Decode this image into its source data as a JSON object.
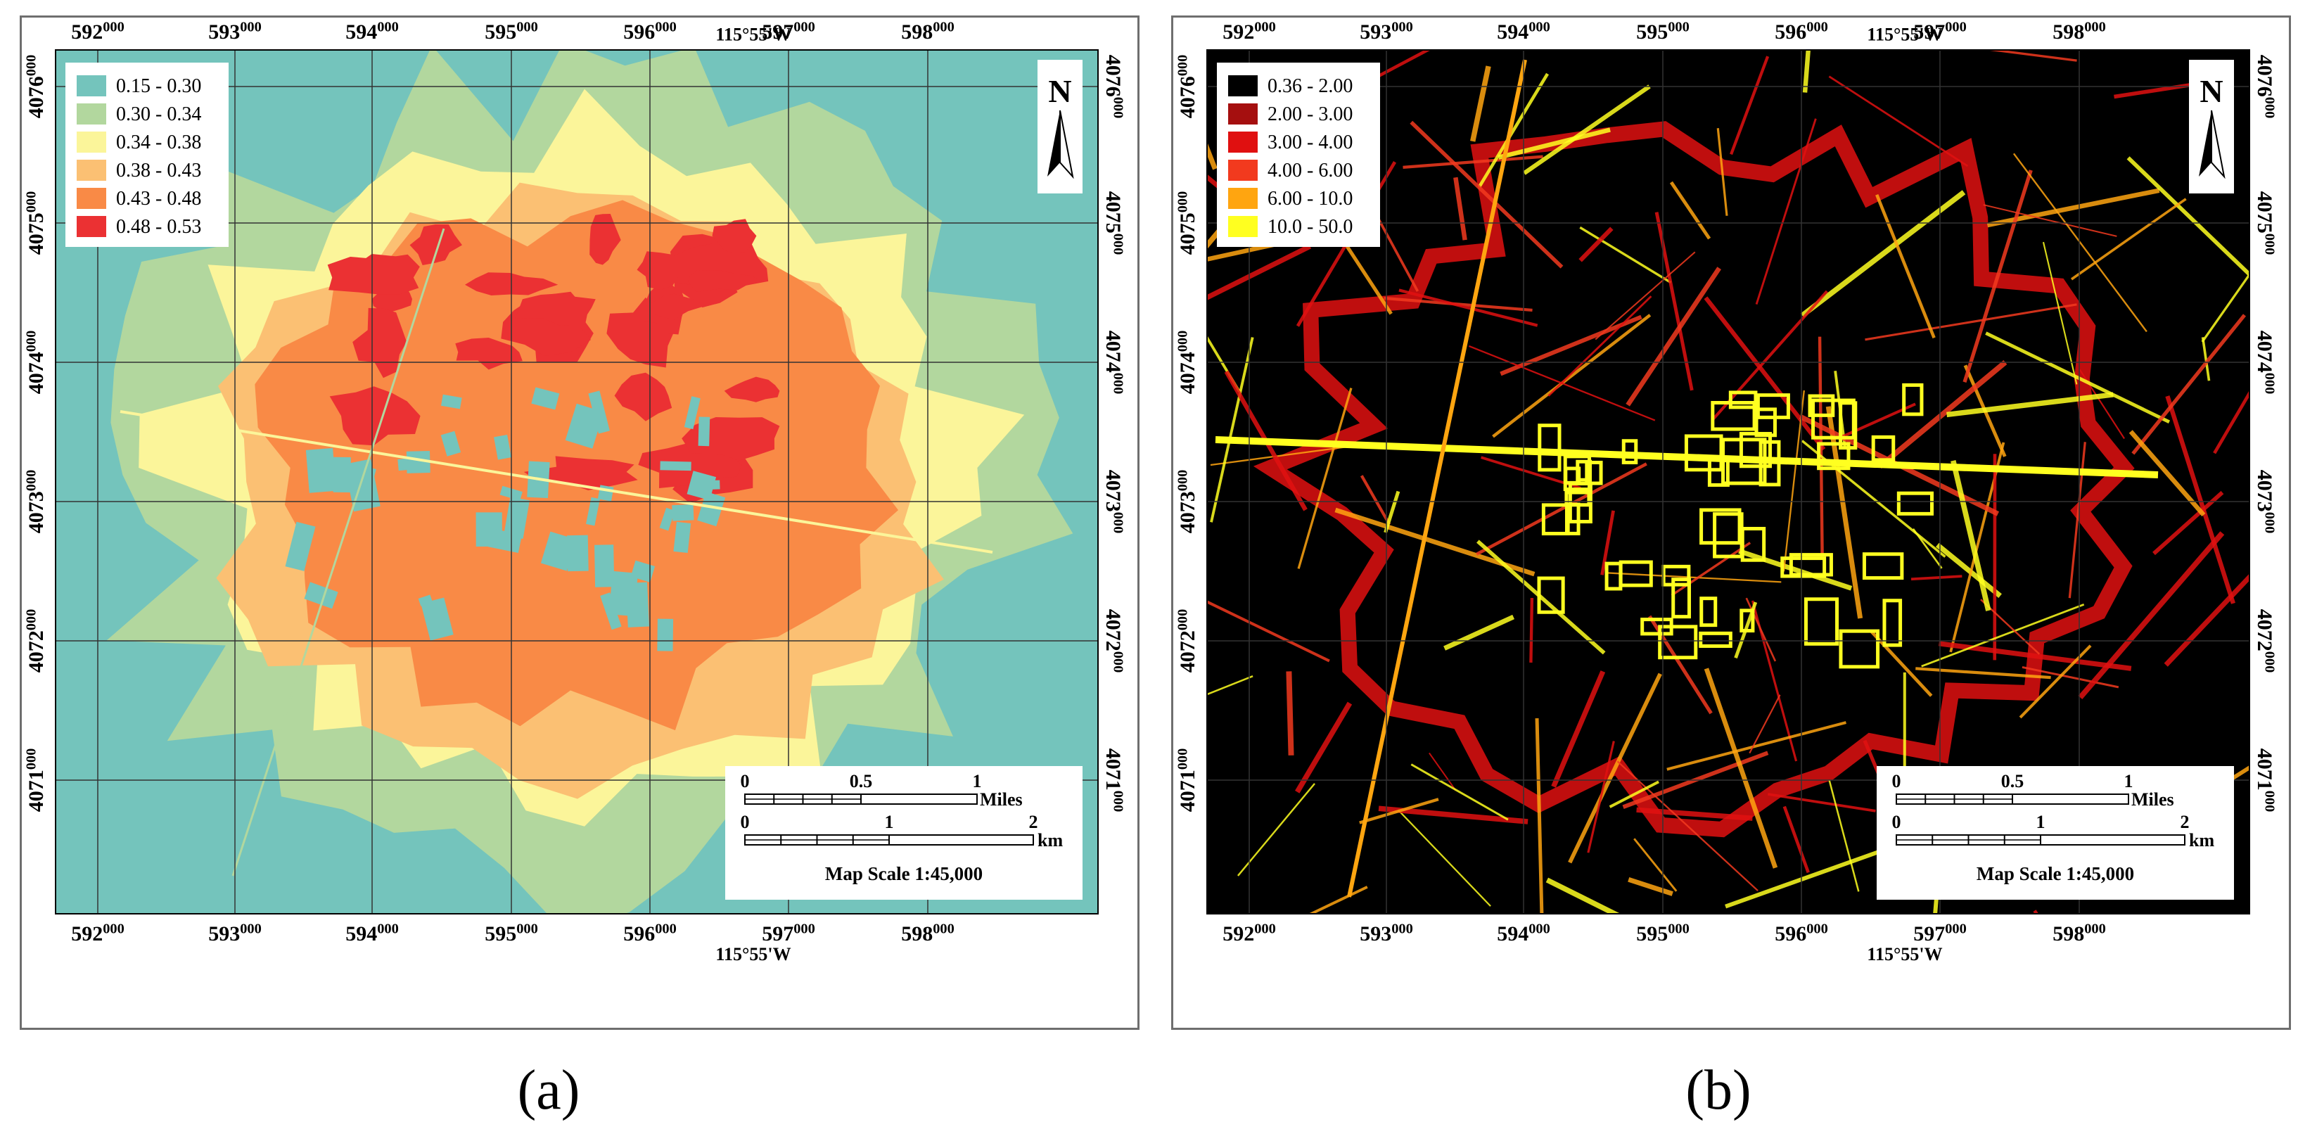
{
  "panels": [
    {
      "id": "a",
      "label": "(a)",
      "longitude_label": "115°55'W",
      "north_label": "N",
      "x_ticks": [
        {
          "main": "592",
          "sup": "000"
        },
        {
          "main": "593",
          "sup": "000"
        },
        {
          "main": "594",
          "sup": "000"
        },
        {
          "main": "595",
          "sup": "000"
        },
        {
          "main": "596",
          "sup": "000"
        },
        {
          "main": "597",
          "sup": "000"
        },
        {
          "main": "598",
          "sup": "000"
        }
      ],
      "y_ticks": [
        {
          "main": "4076",
          "sup": "000"
        },
        {
          "main": "4075",
          "sup": "000"
        },
        {
          "main": "4074",
          "sup": "000"
        },
        {
          "main": "4073",
          "sup": "000"
        },
        {
          "main": "4072",
          "sup": "000"
        },
        {
          "main": "4071",
          "sup": "000"
        }
      ],
      "legend": [
        {
          "range": "0.15 - 0.30",
          "color": "#74c4bc"
        },
        {
          "range": "0.30 - 0.34",
          "color": "#b2d79e"
        },
        {
          "range": "0.34 - 0.38",
          "color": "#fbf59a"
        },
        {
          "range": "0.38 - 0.43",
          "color": "#fbc073"
        },
        {
          "range": "0.43 - 0.48",
          "color": "#f98a46"
        },
        {
          "range": "0.48 - 0.53",
          "color": "#eb3133"
        }
      ],
      "background_color": "#74c4bc",
      "scale": {
        "miles_ticks": [
          "0",
          "0.5",
          "1"
        ],
        "miles_unit": "Miles",
        "km_ticks": [
          "0",
          "1",
          "2"
        ],
        "km_unit": "km",
        "scale_text": "Map Scale 1:45,000"
      }
    },
    {
      "id": "b",
      "label": "(b)",
      "longitude_label": "115°55'W",
      "north_label": "N",
      "x_ticks": [
        {
          "main": "592",
          "sup": "000"
        },
        {
          "main": "593",
          "sup": "000"
        },
        {
          "main": "594",
          "sup": "000"
        },
        {
          "main": "595",
          "sup": "000"
        },
        {
          "main": "596",
          "sup": "000"
        },
        {
          "main": "597",
          "sup": "000"
        },
        {
          "main": "598",
          "sup": "000"
        }
      ],
      "y_ticks": [
        {
          "main": "4076",
          "sup": "000"
        },
        {
          "main": "4075",
          "sup": "000"
        },
        {
          "main": "4074",
          "sup": "000"
        },
        {
          "main": "4073",
          "sup": "000"
        },
        {
          "main": "4072",
          "sup": "000"
        },
        {
          "main": "4071",
          "sup": "000"
        }
      ],
      "legend": [
        {
          "range": "0.36 - 2.00",
          "color": "#000000"
        },
        {
          "range": "2.00 - 3.00",
          "color": "#a50f0f"
        },
        {
          "range": "3.00 - 4.00",
          "color": "#e01010"
        },
        {
          "range": "4.00 - 6.00",
          "color": "#f23a1e"
        },
        {
          "range": "6.00 - 10.0",
          "color": "#ffa510"
        },
        {
          "range": "10.0 - 50.0",
          "color": "#ffff20"
        }
      ],
      "background_color": "#000000",
      "scale": {
        "miles_ticks": [
          "0",
          "0.5",
          "1"
        ],
        "miles_unit": "Miles",
        "km_ticks": [
          "0",
          "1",
          "2"
        ],
        "km_unit": "km",
        "scale_text": "Map Scale 1:45,000"
      }
    }
  ]
}
